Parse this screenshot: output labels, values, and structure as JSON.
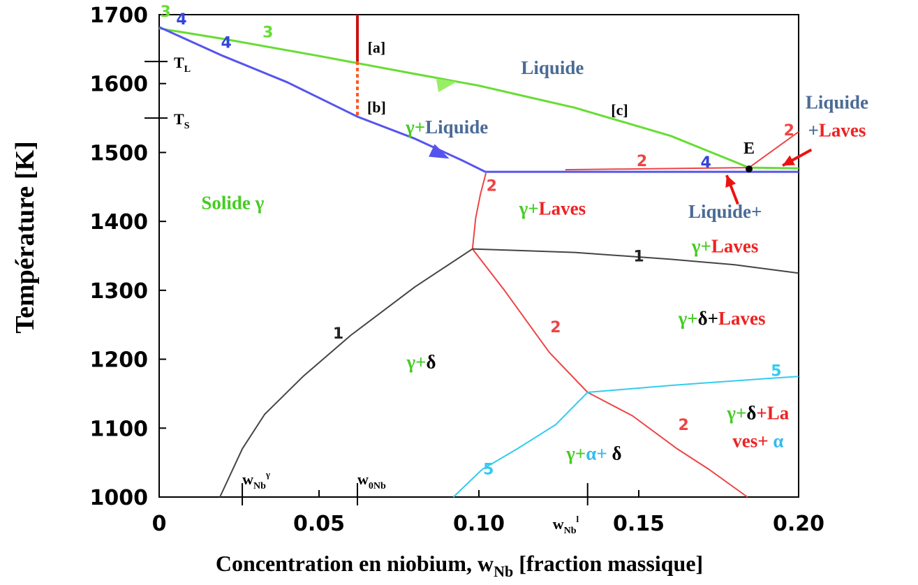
{
  "chart_data": {
    "type": "line",
    "xlabel": "Concentration en niobium, wNb [fraction massique]",
    "xlabel_main": "Concentration en niobium, w",
    "xlabel_sub": "Nb",
    "xlabel_tail": " [fraction massique]",
    "ylabel": "Température [K]",
    "xlim": [
      0,
      0.2
    ],
    "ylim": [
      1000,
      1700
    ],
    "x_ticks": [
      {
        "value": 0,
        "label": "0"
      },
      {
        "value": 0.05,
        "label": "0.05"
      },
      {
        "value": 0.1,
        "label": "0.10"
      },
      {
        "value": 0.15,
        "label": "0.15"
      },
      {
        "value": 0.2,
        "label": "0.20"
      }
    ],
    "y_ticks": [
      {
        "value": 1000,
        "label": "1000"
      },
      {
        "value": 1100,
        "label": "1100"
      },
      {
        "value": 1200,
        "label": "1200"
      },
      {
        "value": 1300,
        "label": "1300"
      },
      {
        "value": 1400,
        "label": "1400"
      },
      {
        "value": 1500,
        "label": "1500"
      },
      {
        "value": 1600,
        "label": "1600"
      },
      {
        "value": 1700,
        "label": "1700"
      }
    ],
    "grid": false,
    "series": [
      {
        "id": "curve-3-liquidus",
        "color": "#66dd33",
        "width": 3,
        "points": [
          [
            0,
            1680
          ],
          [
            0.02,
            1665
          ],
          [
            0.05,
            1640
          ],
          [
            0.08,
            1614
          ],
          [
            0.1,
            1597
          ],
          [
            0.13,
            1565
          ],
          [
            0.16,
            1524
          ],
          [
            0.1845,
            1478
          ],
          [
            0.2,
            1477
          ]
        ]
      },
      {
        "id": "curve-4-solidus",
        "color": "#5555ee",
        "width": 3,
        "points": [
          [
            0,
            1682
          ],
          [
            0.02,
            1640
          ],
          [
            0.04,
            1602
          ],
          [
            0.062,
            1552
          ],
          [
            0.08,
            1520
          ],
          [
            0.095,
            1488
          ],
          [
            0.102,
            1472
          ],
          [
            0.2,
            1472
          ]
        ]
      },
      {
        "id": "curve-2-laves-liquid",
        "color": "#ee4444",
        "width": 2,
        "points": [
          [
            0.127,
            1475
          ],
          [
            0.1845,
            1478
          ],
          [
            0.2,
            1530
          ]
        ]
      },
      {
        "id": "curve-2-laves-solvus",
        "color": "#ee4444",
        "width": 2,
        "points": [
          [
            0.1022,
            1470
          ],
          [
            0.1005,
            1440
          ],
          [
            0.099,
            1405
          ],
          [
            0.098,
            1360
          ]
        ]
      },
      {
        "id": "curve-2-delta-laves",
        "color": "#ee4444",
        "width": 2,
        "points": [
          [
            0.098,
            1360
          ],
          [
            0.108,
            1300
          ],
          [
            0.122,
            1210
          ],
          [
            0.134,
            1152
          ]
        ]
      },
      {
        "id": "curve-2-lower",
        "color": "#ee4444",
        "width": 2,
        "points": [
          [
            0.134,
            1152
          ],
          [
            0.148,
            1118
          ],
          [
            0.162,
            1070
          ],
          [
            0.172,
            1040
          ],
          [
            0.184,
            1000
          ]
        ]
      },
      {
        "id": "curve-1-delta-solvus",
        "color": "#444444",
        "width": 2,
        "points": [
          [
            0.019,
            1000
          ],
          [
            0.026,
            1070
          ],
          [
            0.033,
            1120
          ],
          [
            0.045,
            1175
          ],
          [
            0.06,
            1235
          ],
          [
            0.08,
            1305
          ],
          [
            0.098,
            1360
          ]
        ]
      },
      {
        "id": "curve-1-upper",
        "color": "#444444",
        "width": 2,
        "points": [
          [
            0.098,
            1360
          ],
          [
            0.13,
            1355
          ],
          [
            0.16,
            1345
          ],
          [
            0.18,
            1337
          ],
          [
            0.2,
            1325
          ]
        ]
      },
      {
        "id": "curve-5-upper",
        "color": "#33ccee",
        "width": 2,
        "points": [
          [
            0.134,
            1152
          ],
          [
            0.16,
            1162
          ],
          [
            0.19,
            1172
          ],
          [
            0.2,
            1175
          ]
        ]
      },
      {
        "id": "curve-5-lower",
        "color": "#33ccee",
        "width": 2,
        "points": [
          [
            0.092,
            1000
          ],
          [
            0.101,
            1040
          ],
          [
            0.112,
            1070
          ],
          [
            0.124,
            1105
          ],
          [
            0.134,
            1152
          ]
        ]
      }
    ],
    "curve_labels": [
      {
        "text": "3",
        "x": 0.002,
        "y": 1697,
        "color": "#66dd33"
      },
      {
        "text": "4",
        "x": 0.007,
        "y": 1686,
        "color": "#3344dd"
      },
      {
        "text": "3",
        "x": 0.034,
        "y": 1667,
        "color": "#66dd33"
      },
      {
        "text": "4",
        "x": 0.021,
        "y": 1652,
        "color": "#3344dd"
      },
      {
        "text": "2",
        "x": 0.151,
        "y": 1480,
        "color": "#ee4444"
      },
      {
        "text": "4",
        "x": 0.171,
        "y": 1478,
        "color": "#3344dd"
      },
      {
        "text": "2",
        "x": 0.197,
        "y": 1525,
        "color": "#ee4444"
      },
      {
        "text": "2",
        "x": 0.104,
        "y": 1444,
        "color": "#ee4444"
      },
      {
        "text": "1",
        "x": 0.15,
        "y": 1342,
        "color": "#222222"
      },
      {
        "text": "1",
        "x": 0.056,
        "y": 1230,
        "color": "#222222"
      },
      {
        "text": "2",
        "x": 0.124,
        "y": 1239,
        "color": "#ee4444"
      },
      {
        "text": "5",
        "x": 0.193,
        "y": 1176,
        "color": "#33ccee"
      },
      {
        "text": "2",
        "x": 0.164,
        "y": 1097,
        "color": "#ee4444"
      },
      {
        "text": "5",
        "x": 0.103,
        "y": 1033,
        "color": "#33ccee"
      }
    ],
    "composition_line": {
      "x": 0.062,
      "top": 1700,
      "solid_to": 1632,
      "dashed_to": 1550
    },
    "arrows": [
      {
        "id": "arrow-green",
        "x": 0.09,
        "y": 1600,
        "color": "#99ee66",
        "angle": -10
      },
      {
        "id": "arrow-blue",
        "x": 0.088,
        "y": 1497,
        "color": "#5555ee",
        "angle": 25
      }
    ],
    "eutectic_point": {
      "label": "E",
      "x": 0.1845,
      "y": 1476
    },
    "side_ticks": [
      {
        "label": "T",
        "sub": "L",
        "y": 1632
      },
      {
        "label": "T",
        "sub": "S",
        "y": 1550
      }
    ],
    "bottom_markers": [
      {
        "label": "w",
        "sub": "Nb",
        "sup": "γ",
        "x": 0.026
      },
      {
        "label": "w",
        "sub": "0Nb",
        "sup": "",
        "x": 0.062
      },
      {
        "label": "w",
        "sub": "Nb",
        "sup": "l",
        "x": 0.134
      }
    ],
    "point_labels": [
      {
        "text": "[a]",
        "x": 0.068,
        "y": 1645
      },
      {
        "text": "[b]",
        "x": 0.068,
        "y": 1558
      },
      {
        "text": "[c]",
        "x": 0.144,
        "y": 1554
      }
    ],
    "regions": [
      {
        "id": "liquide",
        "parts": [
          {
            "t": "Liquide",
            "c": "#4a6b96"
          }
        ],
        "x": 0.123,
        "y": 1614
      },
      {
        "id": "gamma-liquide",
        "parts": [
          {
            "t": "γ+",
            "c": "#44cc22"
          },
          {
            "t": "Liquide",
            "c": "#4a6b96"
          }
        ],
        "x": 0.09,
        "y": 1528
      },
      {
        "id": "liquide-laves",
        "parts": [
          {
            "t": "Liquide",
            "c": "#4a6b96"
          }
        ],
        "parts2": [
          {
            "t": "+",
            "c": "#4a6b96"
          },
          {
            "t": "Laves",
            "c": "#ee2222"
          }
        ],
        "x": 0.212,
        "y": 1564
      },
      {
        "id": "solide-gamma",
        "parts": [
          {
            "t": "Solide γ",
            "c": "#44cc22"
          }
        ],
        "x": 0.023,
        "y": 1418
      },
      {
        "id": "gamma-laves",
        "parts": [
          {
            "t": "γ+",
            "c": "#44cc22"
          },
          {
            "t": "Laves",
            "c": "#ee2222"
          }
        ],
        "x": 0.123,
        "y": 1410
      },
      {
        "id": "liquide-plus",
        "parts": [
          {
            "t": "Liquide+",
            "c": "#4a6b96"
          }
        ],
        "x": 0.177,
        "y": 1405
      },
      {
        "id": "gamma-laves-2",
        "parts": [
          {
            "t": "γ+",
            "c": "#44cc22"
          },
          {
            "t": "Laves",
            "c": "#ee2222"
          }
        ],
        "x": 0.177,
        "y": 1355
      },
      {
        "id": "gamma-delta-laves",
        "parts": [
          {
            "t": "γ+",
            "c": "#44cc22"
          },
          {
            "t": "δ+",
            "c": "#000000"
          },
          {
            "t": "Laves",
            "c": "#ee2222"
          }
        ],
        "x": 0.176,
        "y": 1250
      },
      {
        "id": "gamma-delta",
        "parts": [
          {
            "t": "γ+",
            "c": "#44cc22"
          },
          {
            "t": "δ",
            "c": "#000000"
          }
        ],
        "x": 0.082,
        "y": 1187
      },
      {
        "id": "gamma-delta-la",
        "parts": [
          {
            "t": "γ+",
            "c": "#44cc22"
          },
          {
            "t": "δ",
            "c": "#000000"
          },
          {
            "t": "+La",
            "c": "#ee2222"
          }
        ],
        "parts2": [
          {
            "t": "ves+ ",
            "c": "#ee2222"
          },
          {
            "t": "α",
            "c": "#33bbee"
          }
        ],
        "x": 0.1873,
        "y": 1113
      },
      {
        "id": "gamma-alpha-delta",
        "parts": [
          {
            "t": "γ+",
            "c": "#44cc22"
          },
          {
            "t": "α+",
            "c": "#33bbee"
          },
          {
            "t": " δ",
            "c": "#000000"
          }
        ],
        "x": 0.136,
        "y": 1054
      }
    ],
    "red_arrows": [
      {
        "id": "red-arrow-1",
        "from": [
          0.204,
          1504
        ],
        "to": [
          0.195,
          1481
        ]
      },
      {
        "id": "red-arrow-2",
        "from": [
          0.181,
          1425
        ],
        "to": [
          0.1775,
          1467
        ]
      }
    ]
  }
}
